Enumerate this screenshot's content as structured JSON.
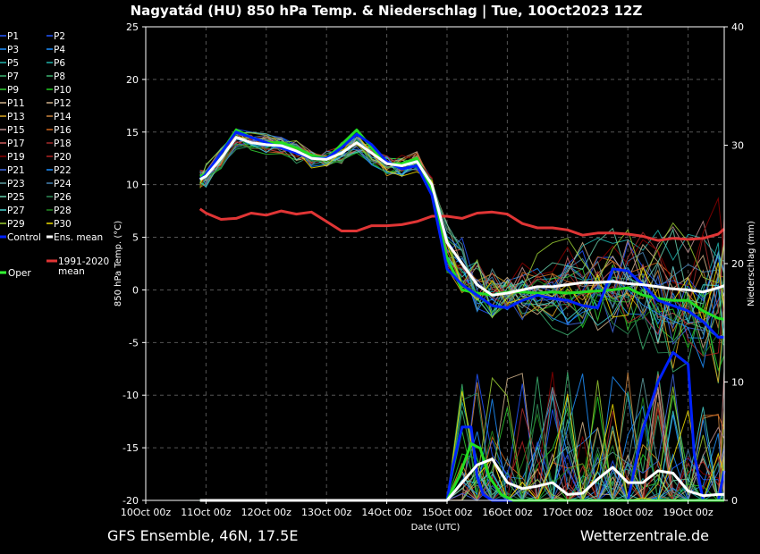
{
  "chart_data": {
    "type": "line",
    "title": "Nagyatád  (HU)  850 hPa Temp. & Niederschlag | Tue, 10Oct2023 12Z",
    "xlabel": "Date (UTC)",
    "ylabel": "850 hPa Temp. (°C)",
    "y2label": "Niederschlag (mm)",
    "ylim": [
      -20,
      25
    ],
    "y2lim": [
      0,
      40
    ],
    "xlim": [
      0,
      9.6
    ],
    "yticks": [
      "25",
      "20",
      "15",
      "10",
      "5",
      "0",
      "-5",
      "-10",
      "-15",
      "-20"
    ],
    "y2ticks": [
      "40",
      "30",
      "20",
      "10",
      "0"
    ],
    "x_ticks": [
      {
        "x": 0,
        "label": "10Oct 00z"
      },
      {
        "x": 1,
        "label": "11Oct 00z"
      },
      {
        "x": 2,
        "label": "12Oct 00z"
      },
      {
        "x": 3,
        "label": "13Oct 00z"
      },
      {
        "x": 4,
        "label": "14Oct 00z"
      },
      {
        "x": 5,
        "label": "15Oct 00z"
      },
      {
        "x": 6,
        "label": "16Oct 00z"
      },
      {
        "x": 7,
        "label": "17Oct 00z"
      },
      {
        "x": 8,
        "label": "18Oct 00z"
      },
      {
        "x": 9,
        "label": "19Oct 00z"
      }
    ],
    "grid": true,
    "legend": {
      "pairs": [
        [
          "P1",
          "P2"
        ],
        [
          "P3",
          "P4"
        ],
        [
          "P5",
          "P6"
        ],
        [
          "P7",
          "P8"
        ],
        [
          "P9",
          "P10"
        ],
        [
          "P11",
          "P12"
        ],
        [
          "P13",
          "P14"
        ],
        [
          "P15",
          "P16"
        ],
        [
          "P17",
          "P18"
        ],
        [
          "P19",
          "P20"
        ],
        [
          "P21",
          "P22"
        ],
        [
          "P23",
          "P24"
        ],
        [
          "P25",
          "P26"
        ],
        [
          "P27",
          "P28"
        ],
        [
          "P29",
          "P30"
        ],
        [
          "Control",
          "Ens. mean"
        ]
      ],
      "pair_colors": [
        [
          "#2255ff",
          "#2255ff"
        ],
        [
          "#1e90ff",
          "#1e90ff"
        ],
        [
          "#20b2aa",
          "#20b2aa"
        ],
        [
          "#3cb371",
          "#3cb371"
        ],
        [
          "#32cd32",
          "#22cc22"
        ],
        [
          "#d2b48c",
          "#d2b48c"
        ],
        [
          "#daa520",
          "#cd853f"
        ],
        [
          "#bc8f8f",
          "#d2691e"
        ],
        [
          "#cd5c5c",
          "#a52a2a"
        ],
        [
          "#8b0000",
          "#b22222"
        ],
        [
          "#4169e1",
          "#1e90ff"
        ],
        [
          "#5f9ea0",
          "#4682b4"
        ],
        [
          "#66cdaa",
          "#2e8b57"
        ],
        [
          "#48d1cc",
          "#228b22"
        ],
        [
          "#9acd32",
          "#eedd00"
        ],
        [
          "#0022ff",
          "#ffffff"
        ]
      ],
      "clim_label_1": "1991-2020",
      "clim_label_2": "mean",
      "clim_color": "#e03535",
      "oper_label": "Oper",
      "oper_color": "#33ff33"
    },
    "series": [
      {
        "name": "Ens. mean",
        "color": "#ffffff",
        "width": 3,
        "x": [
          0.9,
          1.0,
          1.25,
          1.5,
          1.75,
          2.0,
          2.25,
          2.5,
          2.75,
          3.0,
          3.25,
          3.5,
          3.75,
          4.0,
          4.25,
          4.5,
          4.75,
          5.0,
          5.25,
          5.5,
          5.75,
          6.0,
          6.25,
          6.5,
          6.75,
          7.0,
          7.25,
          7.5,
          7.75,
          8.0,
          8.25,
          8.5,
          8.75,
          9.0,
          9.25,
          9.5,
          9.6
        ],
        "y": [
          10.5,
          10.8,
          12.5,
          14.5,
          14.0,
          13.8,
          13.7,
          13.2,
          12.5,
          12.4,
          13.0,
          14.0,
          13.0,
          12.0,
          11.8,
          12.2,
          10.0,
          4.5,
          2.5,
          0.5,
          -0.5,
          -0.3,
          0.0,
          0.3,
          0.3,
          0.5,
          0.7,
          0.7,
          0.8,
          0.6,
          0.5,
          0.3,
          0.1,
          0.0,
          -0.2,
          0.2,
          0.4
        ]
      },
      {
        "name": "Control",
        "color": "#0022ff",
        "width": 3,
        "x": [
          0.9,
          1.0,
          1.25,
          1.5,
          1.75,
          2.0,
          2.25,
          2.5,
          2.75,
          3.0,
          3.25,
          3.5,
          3.75,
          4.0,
          4.25,
          4.5,
          4.75,
          5.0,
          5.25,
          5.5,
          5.75,
          6.0,
          6.25,
          6.5,
          6.75,
          7.0,
          7.25,
          7.5,
          7.75,
          8.0,
          8.25,
          8.5,
          8.75,
          9.0,
          9.25,
          9.5,
          9.6
        ],
        "y": [
          10.5,
          11.0,
          13.0,
          15.0,
          14.5,
          14.0,
          13.5,
          13.0,
          12.5,
          12.5,
          13.5,
          14.8,
          13.8,
          12.2,
          11.5,
          11.8,
          9.0,
          2.0,
          0.5,
          -0.5,
          -1.5,
          -1.7,
          -1.0,
          -0.5,
          -0.8,
          -1.0,
          -1.5,
          -1.7,
          2.0,
          1.8,
          0.5,
          -1.0,
          -1.5,
          -2.0,
          -3.0,
          -4.5,
          -4.5
        ]
      },
      {
        "name": "Oper",
        "color": "#22dd22",
        "width": 3,
        "x": [
          0.9,
          1.0,
          1.25,
          1.5,
          1.75,
          2.0,
          2.25,
          2.5,
          2.75,
          3.0,
          3.25,
          3.5,
          3.75,
          4.0,
          4.25,
          4.5,
          4.75,
          5.0,
          5.25,
          5.5,
          5.75,
          6.0,
          6.25,
          6.5,
          6.75,
          7.0,
          7.25,
          7.5,
          7.75,
          8.0,
          8.25,
          8.5,
          8.75,
          9.0,
          9.25,
          9.5,
          9.6
        ],
        "y": [
          10.8,
          11.0,
          13.0,
          15.2,
          14.5,
          14.0,
          14.0,
          13.5,
          12.8,
          12.5,
          13.8,
          15.2,
          13.5,
          12.0,
          12.0,
          12.5,
          9.5,
          3.0,
          0.0,
          -0.3,
          -0.5,
          -0.2,
          -0.2,
          -0.3,
          -0.2,
          -0.3,
          -0.2,
          -0.1,
          0.0,
          0.2,
          -0.5,
          -0.8,
          -1.0,
          -1.0,
          -2.0,
          -2.7,
          -2.8
        ]
      },
      {
        "name": "1991-2020 mean",
        "color": "#e03535",
        "width": 3,
        "x": [
          0.9,
          1.0,
          1.25,
          1.5,
          1.75,
          2.0,
          2.25,
          2.5,
          2.75,
          3.0,
          3.25,
          3.5,
          3.75,
          4.0,
          4.25,
          4.5,
          4.75,
          5.0,
          5.25,
          5.5,
          5.75,
          6.0,
          6.25,
          6.5,
          6.75,
          7.0,
          7.25,
          7.5,
          7.75,
          8.0,
          8.25,
          8.5,
          8.75,
          9.0,
          9.25,
          9.5,
          9.6
        ],
        "y": [
          7.7,
          7.3,
          6.7,
          6.8,
          7.3,
          7.1,
          7.5,
          7.2,
          7.4,
          6.5,
          5.6,
          5.6,
          6.1,
          6.1,
          6.2,
          6.5,
          7.0,
          7.0,
          6.8,
          7.3,
          7.4,
          7.2,
          6.3,
          5.9,
          5.9,
          5.7,
          5.2,
          5.4,
          5.4,
          5.3,
          5.1,
          4.7,
          4.9,
          4.8,
          4.9,
          5.3,
          5.8
        ]
      },
      {
        "name": "Ens. mean",
        "axis": "y2",
        "color": "#ffffff",
        "width": 3,
        "x": [
          0.9,
          1.5,
          2.0,
          3.0,
          4.0,
          4.5,
          4.75,
          5.0,
          5.25,
          5.5,
          5.75,
          6.0,
          6.25,
          6.5,
          6.75,
          7.0,
          7.25,
          7.5,
          7.75,
          8.0,
          8.25,
          8.5,
          8.75,
          9.0,
          9.25,
          9.5,
          9.6
        ],
        "y": [
          0,
          0,
          0,
          0,
          0,
          0,
          0,
          0,
          1.5,
          3.0,
          3.5,
          1.5,
          1.0,
          1.2,
          1.5,
          0.5,
          0.6,
          1.8,
          2.8,
          1.5,
          1.5,
          2.5,
          2.3,
          0.8,
          0.4,
          0.5,
          0.5
        ]
      },
      {
        "name": "Control",
        "axis": "y2",
        "color": "#0022ff",
        "width": 3,
        "x": [
          0.9,
          2.0,
          3.0,
          4.0,
          4.75,
          5.0,
          5.1,
          5.25,
          5.4,
          5.5,
          5.6,
          5.75,
          6.0,
          7.0,
          7.75,
          8.0,
          8.25,
          8.5,
          8.75,
          9.0,
          9.1,
          9.25,
          9.5,
          9.6
        ],
        "y": [
          0,
          0,
          0,
          0,
          0,
          0,
          3.0,
          6.2,
          6.2,
          2.0,
          0.5,
          0,
          0,
          0,
          0,
          0,
          6.0,
          10.0,
          12.5,
          11.5,
          4.0,
          0,
          0,
          2.5
        ]
      },
      {
        "name": "Oper",
        "axis": "y2",
        "color": "#22dd22",
        "width": 3,
        "x": [
          0.9,
          2.0,
          3.0,
          4.0,
          4.75,
          5.0,
          5.2,
          5.4,
          5.55,
          5.7,
          5.9,
          6.1,
          7.0,
          8.0,
          9.0,
          9.6
        ],
        "y": [
          0,
          0,
          0,
          0,
          0,
          0,
          2.0,
          4.8,
          4.4,
          2.0,
          0.5,
          0,
          0,
          0,
          0,
          0
        ]
      }
    ],
    "footer_left": "GFS Ensemble, 46N, 17.5E",
    "footer_right": "Wetterzentrale.de"
  }
}
